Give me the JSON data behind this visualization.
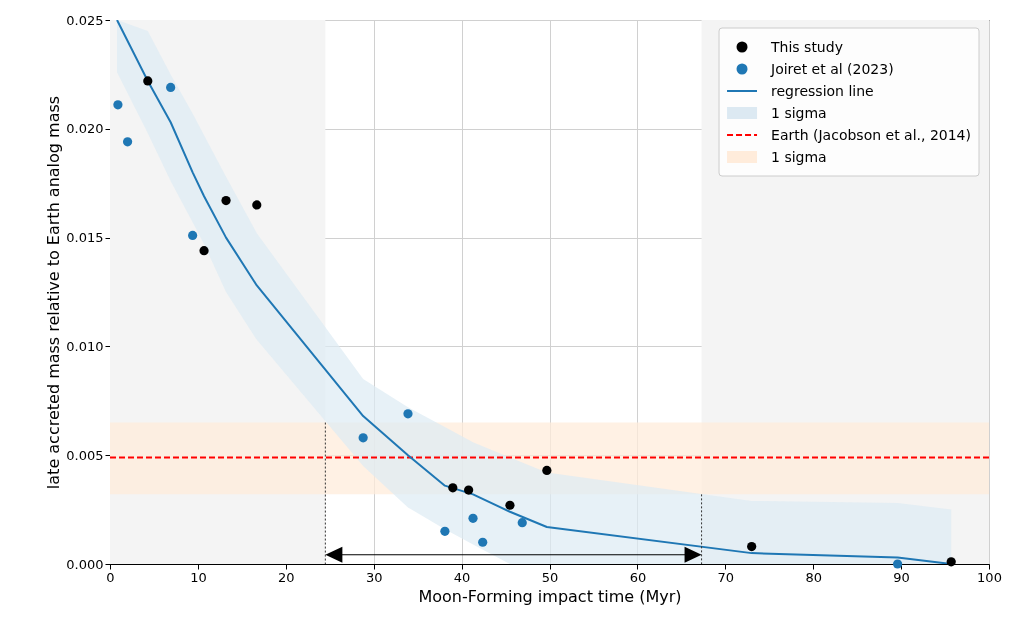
{
  "chart_data": {
    "type": "scatter",
    "xlabel": "Moon-Forming impact time (Myr)",
    "ylabel": "late accreted mass relative to Earth analog mass",
    "xlim": [
      0,
      100
    ],
    "xticks": [
      0,
      10,
      20,
      30,
      40,
      50,
      60,
      70,
      80,
      90,
      100
    ],
    "ylim": [
      0,
      0.025
    ],
    "yticks": [
      {
        "value": 0,
        "label": "0.000"
      },
      {
        "value": 0.005,
        "label": "0.005"
      },
      {
        "value": 0.01,
        "label": "0.010"
      },
      {
        "value": 0.015,
        "label": "0.015"
      },
      {
        "value": 0.02,
        "label": "0.020"
      },
      {
        "value": 0.025,
        "label": "0.025"
      }
    ],
    "grid": true,
    "legend": "top right",
    "annotations": [
      "1 sigma"
    ],
    "series": [
      {
        "name": "This study",
        "color": "#000000",
        "x": [
          4.3,
          10.7,
          13.2,
          16.7,
          39.0,
          40.8,
          45.5,
          49.7,
          73.0,
          95.7
        ],
        "values": [
          0.0222,
          0.0144,
          0.0167,
          0.0165,
          0.0035,
          0.0034,
          0.0027,
          0.0043,
          0.0008,
          0.0001
        ]
      },
      {
        "name": "Joiret et al (2023)",
        "color": "#1f77b4",
        "x": [
          0.9,
          2.0,
          6.9,
          9.4,
          28.8,
          33.9,
          38.1,
          41.3,
          42.4,
          46.9,
          89.6
        ],
        "values": [
          0.0211,
          0.0194,
          0.0219,
          0.0151,
          0.0058,
          0.0069,
          0.0015,
          0.0021,
          0.001,
          0.0019,
          0.0
        ]
      },
      {
        "name": "regression line",
        "type": "line",
        "color": "#1f77b4",
        "x": [
          0.8,
          4.3,
          6.9,
          9.4,
          10.7,
          13.2,
          16.7,
          28.8,
          33.9,
          38.1,
          41.3,
          45.5,
          49.7,
          73.0,
          89.6,
          95.7
        ],
        "values": [
          0.025,
          0.0222,
          0.0203,
          0.018,
          0.0169,
          0.015,
          0.0128,
          0.0068,
          0.005,
          0.0036,
          0.0032,
          0.0024,
          0.0017,
          0.0005,
          0.0003,
          0.0
        ],
        "lower": [
          0.0226,
          0.0198,
          0.0176,
          0.0157,
          0.0147,
          0.0125,
          0.0103,
          0.0045,
          0.0026,
          0.0016,
          0.0009,
          0.0,
          0.0,
          0.0,
          0.0,
          0.0
        ],
        "upper": [
          0.025,
          0.0245,
          0.0225,
          0.0207,
          0.0197,
          0.0178,
          0.0152,
          0.0085,
          0.0072,
          0.0063,
          0.0056,
          0.0049,
          0.0042,
          0.0029,
          0.0028,
          0.0025
        ]
      }
    ],
    "ref_lines": [
      {
        "axis": "y",
        "value": 0.0049,
        "label": "Earth (Jacobson et al., 2014)",
        "color": "#ff0000",
        "line_style": "dashed"
      }
    ],
    "bands": [
      {
        "axis": "x",
        "from": 0,
        "to": 24.5,
        "color": "#f4f4f4"
      },
      {
        "axis": "x",
        "from": 67.3,
        "to": 100,
        "color": "#f4f4f4"
      },
      {
        "axis": "y",
        "from": 0.0032,
        "to": 0.0065,
        "label": "1 sigma",
        "color": "#ffecdb"
      }
    ]
  }
}
